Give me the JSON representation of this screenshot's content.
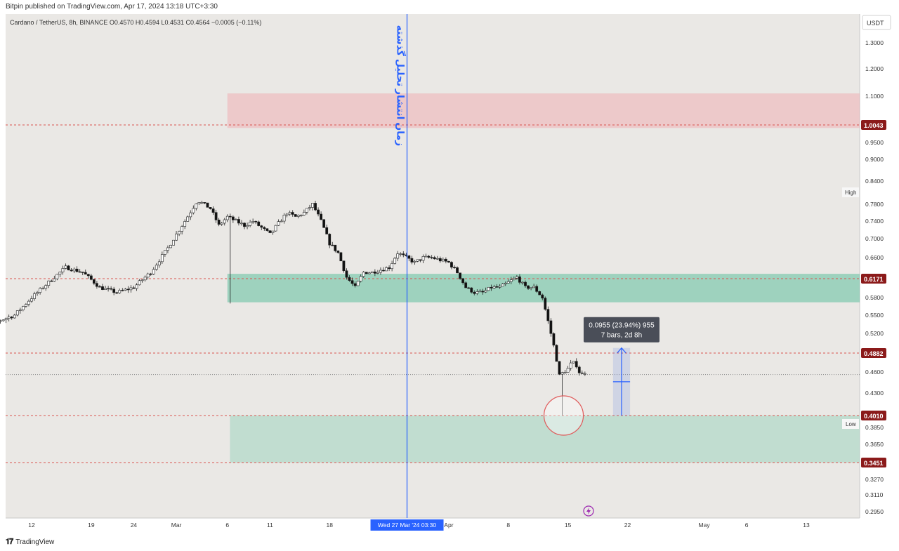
{
  "header": {
    "publisher_line": "Bitpin published on TradingView.com, Apr 17, 2024 13:18 UTC+3:30"
  },
  "chart_data": {
    "type": "candlestick",
    "symbol_line": "Cardano / TetherUS, 8h, BINANCE  O0.4570  H0.4594  L0.4531  C0.4564  −0.0005 (−0.11%)",
    "currency_label": "USDT",
    "y_ticks": [
      "1.3000",
      "1.2000",
      "1.1000",
      "0.9500",
      "0.9000",
      "0.8400",
      "0.7800",
      "0.7400",
      "0.7000",
      "0.6600",
      "0.5800",
      "0.5500",
      "0.5200",
      "0.4600",
      "0.4300",
      "0.3850",
      "0.3650",
      "0.3270",
      "0.3110",
      "0.2950"
    ],
    "y_tick_values": [
      1.3,
      1.2,
      1.1,
      0.95,
      0.9,
      0.84,
      0.78,
      0.74,
      0.7,
      0.66,
      0.58,
      0.55,
      0.52,
      0.46,
      0.43,
      0.385,
      0.365,
      0.327,
      0.311,
      0.295
    ],
    "x_ticks": [
      {
        "label": "12",
        "day": 12
      },
      {
        "label": "19",
        "day": 19
      },
      {
        "label": "24",
        "day": 24
      },
      {
        "label": "Mar",
        "day": 29
      },
      {
        "label": "6",
        "day": 35
      },
      {
        "label": "11",
        "day": 40
      },
      {
        "label": "18",
        "day": 47
      },
      {
        "label": "Apr",
        "day": 61
      },
      {
        "label": "8",
        "day": 68
      },
      {
        "label": "15",
        "day": 75
      },
      {
        "label": "22",
        "day": 82
      },
      {
        "label": "May",
        "day": 91
      },
      {
        "label": "6",
        "day": 96
      },
      {
        "label": "13",
        "day": 103
      }
    ],
    "x_axis_highlight": {
      "label": "Wed 27 Mar '24   03:30",
      "day": 56.1
    },
    "price_levels": [
      {
        "label": "1.0043",
        "value": 1.0043
      },
      {
        "label": "0.6171",
        "value": 0.6171
      },
      {
        "label": "0.4882",
        "value": 0.4882
      },
      {
        "label": "0.4010",
        "value": 0.401
      },
      {
        "label": "0.3451",
        "value": 0.3451
      }
    ],
    "high_label": "High",
    "low_label": "Low",
    "current_price": 0.4564,
    "zones": [
      {
        "name": "supply",
        "from_day": 35,
        "price_top": 1.11,
        "price_bottom": 0.995,
        "color": "#f2a4a8"
      },
      {
        "name": "demand-upper",
        "from_day": 35,
        "price_top": 0.627,
        "price_bottom": 0.572,
        "color": "#5fbf9f"
      },
      {
        "name": "demand-lower",
        "from_day": 35.3,
        "price_top": 0.401,
        "price_bottom": 0.345,
        "color": "#9fd3c0"
      }
    ],
    "vertical_line_day": 56.1,
    "annotation_text": "زمان انتشار تحلیل گذشته",
    "measure": {
      "line1": "0.0955 (23.94%) 955",
      "line2": "7 bars, 2d 8h",
      "from": 0.401,
      "to": 0.4965,
      "day_from": 80.3,
      "day_to": 82.3
    },
    "low_circle": {
      "day": 74.5,
      "price": 0.401
    },
    "series": [
      {
        "name": "ADAUSDT",
        "path_days": [
          5,
          8,
          10,
          12,
          14,
          16,
          18,
          20,
          22,
          24,
          26,
          28,
          30,
          31.5,
          33,
          34,
          35,
          36,
          37,
          38,
          40,
          42,
          43,
          44,
          45,
          46,
          47,
          48,
          49,
          50,
          51,
          52,
          53,
          54,
          55,
          56,
          57,
          58,
          59,
          60,
          61,
          62,
          63,
          64,
          65,
          66,
          67,
          68,
          69,
          70,
          71,
          72,
          73,
          73.5,
          74,
          74.5,
          75,
          75.5,
          76,
          76.5,
          77
        ],
        "path_prices": [
          0.535,
          0.54,
          0.55,
          0.58,
          0.61,
          0.64,
          0.63,
          0.6,
          0.59,
          0.6,
          0.63,
          0.68,
          0.74,
          0.79,
          0.77,
          0.73,
          0.75,
          0.74,
          0.73,
          0.74,
          0.71,
          0.76,
          0.75,
          0.76,
          0.78,
          0.74,
          0.69,
          0.67,
          0.62,
          0.6,
          0.63,
          0.63,
          0.635,
          0.64,
          0.67,
          0.66,
          0.65,
          0.66,
          0.66,
          0.655,
          0.65,
          0.63,
          0.6,
          0.59,
          0.59,
          0.6,
          0.6,
          0.61,
          0.62,
          0.6,
          0.6,
          0.58,
          0.52,
          0.49,
          0.455,
          0.46,
          0.465,
          0.475,
          0.47,
          0.455,
          0.46
        ]
      }
    ]
  },
  "footer": {
    "brand": "TradingView"
  }
}
